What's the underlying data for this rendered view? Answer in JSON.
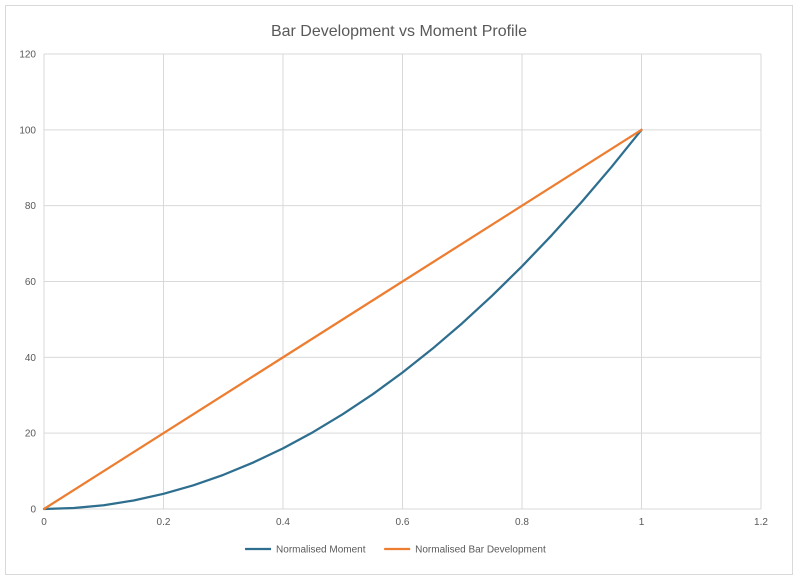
{
  "chart_data": {
    "type": "line",
    "title": "Bar Development vs Moment Profile",
    "xlabel": "",
    "ylabel": "",
    "xlim": [
      0,
      1.2
    ],
    "ylim": [
      0,
      120
    ],
    "x_ticks": [
      0,
      0.2,
      0.4,
      0.6,
      0.8,
      1,
      1.2
    ],
    "x_tick_labels": [
      "0",
      "0.2",
      "0.4",
      "0.6",
      "0.8",
      "1",
      "1.2"
    ],
    "y_ticks": [
      0,
      20,
      40,
      60,
      80,
      100,
      120
    ],
    "y_tick_labels": [
      "0",
      "20",
      "40",
      "60",
      "80",
      "100",
      "120"
    ],
    "grid": true,
    "legend_position": "bottom",
    "series": [
      {
        "name": "Normalised Moment",
        "color": "#2e6e8e",
        "x": [
          0,
          0.05,
          0.1,
          0.15,
          0.2,
          0.25,
          0.3,
          0.35,
          0.4,
          0.45,
          0.5,
          0.55,
          0.6,
          0.65,
          0.7,
          0.75,
          0.8,
          0.85,
          0.9,
          0.95,
          1
        ],
        "y": [
          0,
          0.25,
          1,
          2.25,
          4,
          6.25,
          9,
          12.25,
          16,
          20.25,
          25,
          30.25,
          36,
          42.25,
          49,
          56.25,
          64,
          72.25,
          81,
          90.25,
          100
        ]
      },
      {
        "name": "Normalised Bar Development",
        "color": "#ed7d31",
        "x": [
          0,
          1
        ],
        "y": [
          0,
          100
        ]
      }
    ]
  }
}
